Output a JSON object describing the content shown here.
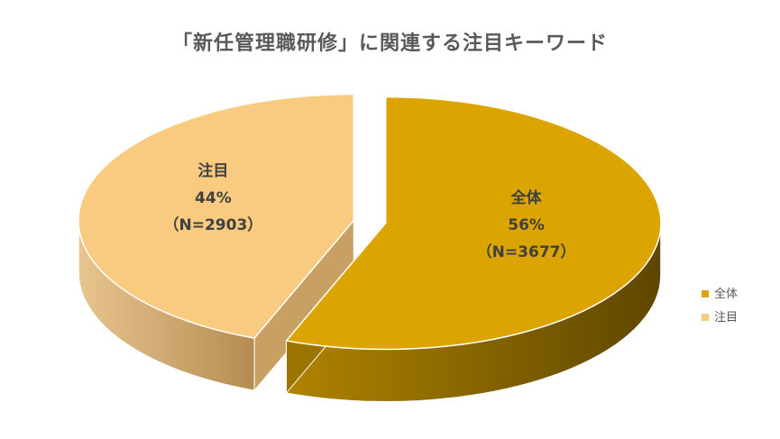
{
  "chart_data": {
    "type": "pie",
    "title": "「新任管理職研修」に関連する注目キーワード",
    "slices": [
      {
        "name": "全体",
        "percent_label": "56%",
        "n_label": "（N=3677）",
        "value": 3677,
        "color": "#DCA400",
        "side_color": "#8A6700"
      },
      {
        "name": "注目",
        "percent_label": "44%",
        "n_label": "（N=2903）",
        "value": 2903,
        "color": "#F8CB80",
        "side_color": "#C29A5C"
      }
    ],
    "legend": {
      "position": "right",
      "items": [
        {
          "label": "全体",
          "color": "#DCA400"
        },
        {
          "label": "注目",
          "color": "#F8CB80"
        }
      ]
    },
    "exploded": true,
    "three_d": true
  }
}
